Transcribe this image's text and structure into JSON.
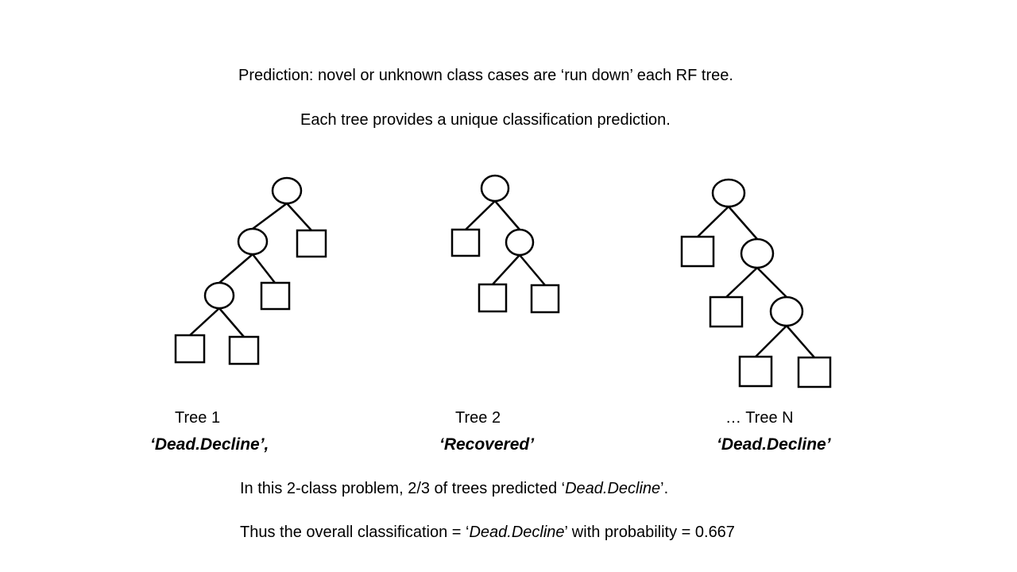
{
  "header": {
    "line1": "Prediction: novel or unknown class cases are ‘run down’ each RF tree.",
    "line2": "Each tree provides a unique classification prediction."
  },
  "trees": [
    {
      "label": "Tree 1",
      "prediction": "‘Dead.Decline’,"
    },
    {
      "label": "Tree 2",
      "prediction": "‘Recovered’"
    },
    {
      "label": "…  Tree N",
      "prediction": "‘Dead.Decline’"
    }
  ],
  "footer": {
    "line1_pre": "In this 2-class problem, 2/3 of trees predicted ‘",
    "line1_class": "Dead.Decline",
    "line1_post": "’.",
    "line2_pre": "Thus the overall classification = ‘",
    "line2_class": "Dead.Decline",
    "line2_post": "’  with probability = 0.667"
  }
}
